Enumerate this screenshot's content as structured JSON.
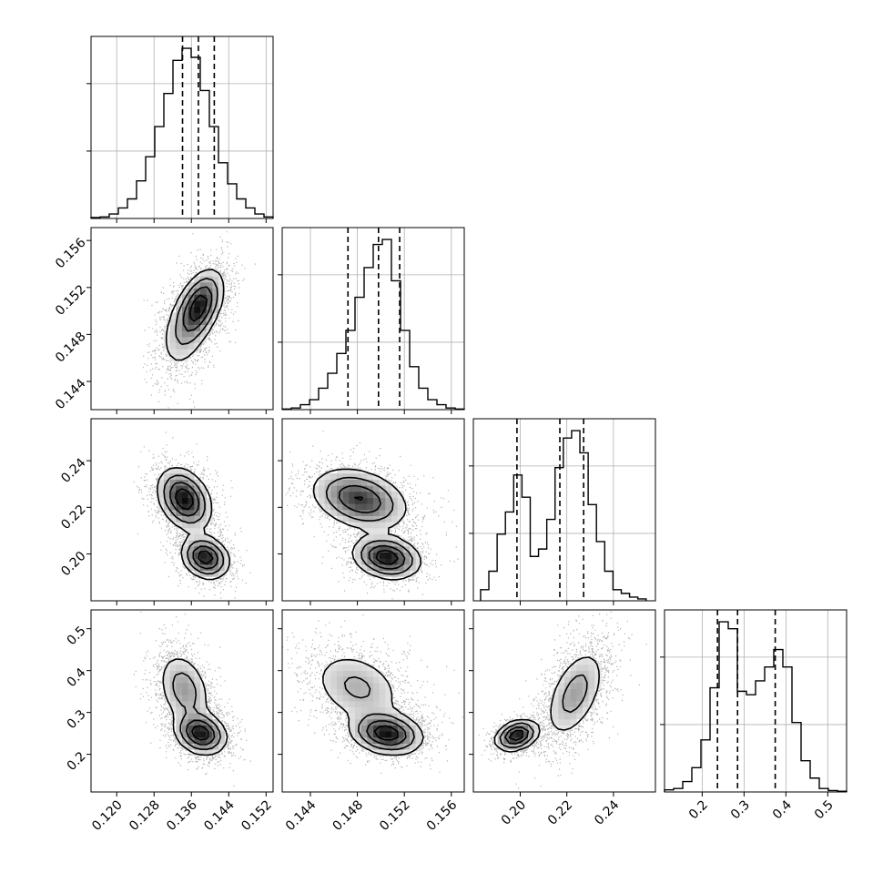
{
  "chart_data": {
    "type": "corner",
    "grid": true,
    "parameters": [
      {
        "median": 0.1375,
        "q16": 0.1341,
        "q84": 0.1409,
        "range": [
          0.1145,
          0.1535
        ],
        "ticks": [
          "0.120",
          "0.128",
          "0.136",
          "0.144",
          "0.152"
        ]
      },
      {
        "median": 0.1498,
        "q16": 0.1472,
        "q84": 0.1516,
        "range": [
          0.1416,
          0.1571
        ],
        "ticks": [
          "0.144",
          "0.148",
          "0.152",
          "0.156"
        ]
      },
      {
        "median": 0.217,
        "q16": 0.1986,
        "q84": 0.2272,
        "range": [
          0.1799,
          0.258
        ],
        "ticks": [
          "0.20",
          "0.22",
          "0.24"
        ]
      },
      {
        "median": 0.2845,
        "q16": 0.2365,
        "q84": 0.3745,
        "range": [
          0.11,
          0.545
        ],
        "ticks": [
          "0.2",
          "0.3",
          "0.4",
          "0.5"
        ]
      }
    ],
    "histograms": [
      [
        0.3,
        0.5,
        1.5,
        3.5,
        6.5,
        12.5,
        20.5,
        30.5,
        41.5,
        52.5,
        56.5,
        53.5,
        42.5,
        30.5,
        18.5,
        11.5,
        6.5,
        3.5,
        1.5,
        0.5
      ],
      [
        0.2,
        0.5,
        1.5,
        3.0,
        6.5,
        11.0,
        17.0,
        24.0,
        34.0,
        43.0,
        50.0,
        51.5,
        39.0,
        24.0,
        13.0,
        6.5,
        3.0,
        1.5,
        0.5,
        0.2
      ],
      [
        3,
        8,
        18,
        24,
        34,
        28,
        12,
        14,
        22,
        36,
        44,
        46,
        40,
        26,
        16,
        8,
        3,
        2,
        1,
        0.5
      ],
      [
        0.3,
        0.5,
        1.5,
        3.5,
        7.5,
        15,
        24.5,
        23.5,
        14.5,
        14,
        16,
        18,
        20.5,
        18,
        10,
        4.5,
        2,
        0.5,
        0.2,
        0.1
      ]
    ],
    "histogram_ranges": [
      [
        0.1145,
        0.1535
      ],
      [
        0.1416,
        0.1571
      ],
      [
        0.183,
        0.254
      ],
      [
        0.11,
        0.545
      ]
    ],
    "joint_modes": {
      "1-0": [
        {
          "mean": [
            0.1378,
            0.1505
          ],
          "sd": [
            0.0025,
            0.0015
          ],
          "corr": 0.45,
          "w": 0.7
        },
        {
          "mean": [
            0.1345,
            0.1482
          ],
          "sd": [
            0.0028,
            0.0018
          ],
          "corr": 0.35,
          "w": 0.3
        }
      ],
      "2-0": [
        {
          "mean": [
            0.1345,
            0.2235
          ],
          "sd": [
            0.0028,
            0.0065
          ],
          "corr": -0.3,
          "w": 0.62
        },
        {
          "mean": [
            0.139,
            0.1985
          ],
          "sd": [
            0.0025,
            0.0045
          ],
          "corr": -0.2,
          "w": 0.38
        }
      ],
      "2-1": [
        {
          "mean": [
            0.1482,
            0.2235
          ],
          "sd": [
            0.002,
            0.0065
          ],
          "corr": -0.3,
          "w": 0.62
        },
        {
          "mean": [
            0.1505,
            0.1985
          ],
          "sd": [
            0.0014,
            0.0045
          ],
          "corr": -0.2,
          "w": 0.38
        }
      ],
      "3-0": [
        {
          "mean": [
            0.138,
            0.25
          ],
          "sd": [
            0.0027,
            0.025
          ],
          "corr": -0.2,
          "w": 0.55
        },
        {
          "mean": [
            0.1345,
            0.355
          ],
          "sd": [
            0.0028,
            0.045
          ],
          "corr": -0.3,
          "w": 0.45
        }
      ],
      "3-1": [
        {
          "mean": [
            0.1505,
            0.25
          ],
          "sd": [
            0.0015,
            0.025
          ],
          "corr": -0.2,
          "w": 0.55
        },
        {
          "mean": [
            0.148,
            0.36
          ],
          "sd": [
            0.002,
            0.045
          ],
          "corr": -0.3,
          "w": 0.45
        }
      ],
      "3-2": [
        {
          "mean": [
            0.1985,
            0.245
          ],
          "sd": [
            0.0045,
            0.018
          ],
          "corr": 0.3,
          "w": 0.38
        },
        {
          "mean": [
            0.2235,
            0.345
          ],
          "sd": [
            0.0065,
            0.055
          ],
          "corr": 0.5,
          "w": 0.62
        }
      ]
    }
  }
}
